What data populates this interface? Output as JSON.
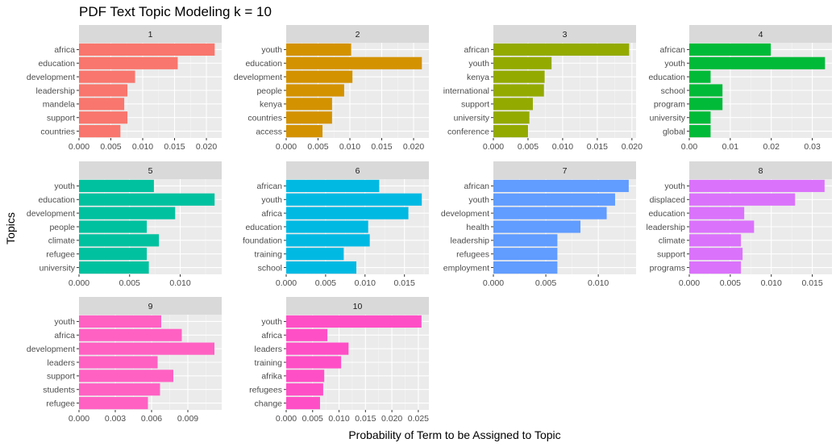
{
  "chart_data": {
    "type": "bar",
    "orientation": "horizontal",
    "title": "PDF Text Topic Modeling k = 10",
    "xlabel": "Probability of Term to be Assigned to Topic",
    "ylabel": "Topics",
    "grid": true,
    "facets": [
      {
        "name": "1",
        "color": "#F8766D",
        "terms": [
          "africa",
          "education",
          "development",
          "leadership",
          "mandela",
          "support",
          "countries"
        ],
        "values": [
          0.0213,
          0.0155,
          0.0088,
          0.0076,
          0.0071,
          0.0076,
          0.0065
        ],
        "xlim": [
          0,
          0.0224
        ],
        "ticks": [
          0,
          0.005,
          0.01,
          0.015,
          0.02
        ],
        "tick_labels": [
          "0.000",
          "0.005",
          "0.010",
          "0.015",
          "0.020"
        ]
      },
      {
        "name": "2",
        "color": "#D39200",
        "terms": [
          "youth",
          "education",
          "development",
          "people",
          "kenya",
          "countries",
          "access"
        ],
        "values": [
          0.0102,
          0.0213,
          0.0104,
          0.0091,
          0.0072,
          0.0072,
          0.0057
        ],
        "xlim": [
          0,
          0.0224
        ],
        "ticks": [
          0,
          0.005,
          0.01,
          0.015,
          0.02
        ],
        "tick_labels": [
          "0.000",
          "0.005",
          "0.010",
          "0.015",
          "0.020"
        ]
      },
      {
        "name": "3",
        "color": "#93AA00",
        "terms": [
          "african",
          "youth",
          "kenya",
          "international",
          "support",
          "university",
          "conference"
        ],
        "values": [
          0.0196,
          0.0084,
          0.0074,
          0.0073,
          0.0057,
          0.0052,
          0.005
        ],
        "xlim": [
          0,
          0.0206
        ],
        "ticks": [
          0,
          0.005,
          0.01,
          0.015,
          0.02
        ],
        "tick_labels": [
          "0.000",
          "0.005",
          "0.010",
          "0.015",
          "0.020"
        ]
      },
      {
        "name": "4",
        "color": "#00BA38",
        "terms": [
          "african",
          "youth",
          "education",
          "school",
          "program",
          "university",
          "global"
        ],
        "values": [
          0.0199,
          0.0331,
          0.0052,
          0.0081,
          0.0081,
          0.0052,
          0.0052
        ],
        "xlim": [
          0,
          0.0348
        ],
        "ticks": [
          0,
          0.01,
          0.02,
          0.03
        ],
        "tick_labels": [
          "0.00",
          "0.01",
          "0.02",
          "0.03"
        ]
      },
      {
        "name": "5",
        "color": "#00C19F",
        "terms": [
          "youth",
          "education",
          "development",
          "people",
          "climate",
          "refugee",
          "university"
        ],
        "values": [
          0.0074,
          0.0134,
          0.0095,
          0.0067,
          0.0079,
          0.0067,
          0.0069
        ],
        "xlim": [
          0,
          0.0141
        ],
        "ticks": [
          0,
          0.005,
          0.01
        ],
        "tick_labels": [
          "0.000",
          "0.005",
          "0.010"
        ]
      },
      {
        "name": "6",
        "color": "#00B9E3",
        "terms": [
          "african",
          "youth",
          "africa",
          "education",
          "foundation",
          "training",
          "school"
        ],
        "values": [
          0.0118,
          0.0172,
          0.0155,
          0.0104,
          0.0106,
          0.0073,
          0.0089
        ],
        "xlim": [
          0,
          0.0181
        ],
        "ticks": [
          0,
          0.005,
          0.01,
          0.015
        ],
        "tick_labels": [
          "0.000",
          "0.005",
          "0.010",
          "0.015"
        ]
      },
      {
        "name": "7",
        "color": "#619CFF",
        "terms": [
          "african",
          "youth",
          "development",
          "health",
          "leadership",
          "refugees",
          "employment"
        ],
        "values": [
          0.0129,
          0.0116,
          0.0108,
          0.0083,
          0.0061,
          0.0061,
          0.0061
        ],
        "xlim": [
          0,
          0.0136
        ],
        "ticks": [
          0,
          0.005,
          0.01
        ],
        "tick_labels": [
          "0.000",
          "0.005",
          "0.010"
        ]
      },
      {
        "name": "8",
        "color": "#DB72FB",
        "terms": [
          "youth",
          "displaced",
          "education",
          "leadership",
          "climate",
          "support",
          "programs"
        ],
        "values": [
          0.0165,
          0.0129,
          0.0067,
          0.0079,
          0.0063,
          0.0065,
          0.0063
        ],
        "xlim": [
          0,
          0.0174
        ],
        "ticks": [
          0,
          0.005,
          0.01,
          0.015
        ],
        "tick_labels": [
          "0.000",
          "0.005",
          "0.010",
          "0.015"
        ]
      },
      {
        "name": "9",
        "color": "#FF61C3",
        "terms": [
          "youth",
          "africa",
          "development",
          "leaders",
          "support",
          "students",
          "refugee"
        ],
        "values": [
          0.0068,
          0.0085,
          0.0112,
          0.0065,
          0.0078,
          0.0067,
          0.0057
        ],
        "xlim": [
          0,
          0.0118
        ],
        "ticks": [
          0,
          0.003,
          0.006,
          0.009
        ],
        "tick_labels": [
          "0.000",
          "0.003",
          "0.006",
          "0.009"
        ]
      },
      {
        "name": "10",
        "color": "#FF4FC6",
        "terms": [
          "youth",
          "africa",
          "leaders",
          "training",
          "afrika",
          "refugees",
          "change"
        ],
        "values": [
          0.0256,
          0.0078,
          0.0118,
          0.0104,
          0.0072,
          0.007,
          0.0064
        ],
        "xlim": [
          0,
          0.027
        ],
        "ticks": [
          0,
          0.005,
          0.01,
          0.015,
          0.02,
          0.025
        ],
        "tick_labels": [
          "0.000",
          "0.005",
          "0.010",
          "0.015",
          "0.020",
          "0.025"
        ]
      }
    ]
  }
}
